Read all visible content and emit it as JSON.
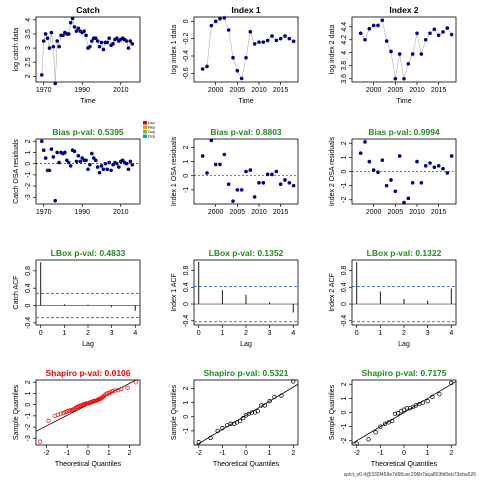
{
  "footer": "spict_v0.4@332f459e7d96cec206b7aca803fd0eb73eba526",
  "colors": {
    "pass": "#228B22",
    "fail": "#FF0000",
    "points": "#00008B",
    "ci_line": "#4169E1",
    "qq_line": "#000000"
  },
  "chart_data": [
    {
      "id": "catch",
      "type": "line",
      "title": "Catch",
      "title_color": "#000000",
      "xlabel": "Time",
      "ylabel": "log catch data",
      "xlim": [
        1966,
        2020
      ],
      "ylim": [
        1.8,
        4.1
      ],
      "xticks": [
        1970,
        1990,
        2010
      ],
      "yticks": [
        2.0,
        2.5,
        3.0,
        3.5,
        4.0
      ],
      "x": [
        1969,
        1970,
        1971,
        1972,
        1973,
        1974,
        1975,
        1976,
        1977,
        1978,
        1979,
        1980,
        1981,
        1982,
        1983,
        1984,
        1985,
        1986,
        1987,
        1988,
        1989,
        1990,
        1991,
        1992,
        1993,
        1994,
        1995,
        1996,
        1997,
        1998,
        1999,
        2000,
        2001,
        2002,
        2003,
        2004,
        2005,
        2006,
        2007,
        2008,
        2009,
        2010,
        2011,
        2012,
        2013,
        2014,
        2015,
        2016
      ],
      "y": [
        2.05,
        3.25,
        3.5,
        3.35,
        3.0,
        3.55,
        3.05,
        1.75,
        3.25,
        3.05,
        3.45,
        3.45,
        3.55,
        3.5,
        3.5,
        3.9,
        4.05,
        3.75,
        3.6,
        3.7,
        3.6,
        3.55,
        3.6,
        3.45,
        3.0,
        3.05,
        3.25,
        3.35,
        3.35,
        3.25,
        3.05,
        3.2,
        2.95,
        3.2,
        3.2,
        3.35,
        3.1,
        3.15,
        3.3,
        3.35,
        3.25,
        3.3,
        3.35,
        3.3,
        3.25,
        3.0,
        3.25,
        3.15
      ],
      "series_color": "#00008B",
      "connect": true
    },
    {
      "id": "index1",
      "type": "line",
      "title": "Index 1",
      "title_color": "#000000",
      "xlabel": "Time",
      "ylabel": "log index 1 data",
      "xlim": [
        1995,
        2019
      ],
      "ylim": [
        -0.7,
        0.05
      ],
      "xticks": [
        2000,
        2005,
        2010,
        2015
      ],
      "yticks": [
        -0.6,
        -0.4,
        -0.2,
        0.0
      ],
      "x": [
        1997,
        1998,
        1999,
        2000,
        2001,
        2002,
        2003,
        2004,
        2005,
        2006,
        2007,
        2008,
        2009,
        2010,
        2011,
        2012,
        2013,
        2014,
        2015,
        2016,
        2017,
        2018
      ],
      "y": [
        -0.55,
        -0.52,
        -0.05,
        0.0,
        0.03,
        0.04,
        -0.1,
        -0.42,
        -0.57,
        -0.66,
        -0.42,
        -0.12,
        -0.26,
        -0.24,
        -0.24,
        -0.22,
        -0.17,
        -0.22,
        -0.2,
        -0.17,
        -0.2,
        -0.23
      ],
      "series_color": "#00008B",
      "connect": true
    },
    {
      "id": "index2",
      "type": "line",
      "title": "Index 2",
      "title_color": "#000000",
      "xlabel": "Time",
      "ylabel": "log index 2 data",
      "xlim": [
        1995,
        2019
      ],
      "ylim": [
        3.55,
        4.55
      ],
      "xticks": [
        2000,
        2005,
        2010,
        2015
      ],
      "yticks": [
        3.6,
        3.8,
        4.0,
        4.2,
        4.4
      ],
      "x": [
        1997,
        1998,
        1999,
        2000,
        2001,
        2002,
        2003,
        2004,
        2005,
        2006,
        2007,
        2008,
        2009,
        2010,
        2011,
        2012,
        2013,
        2014,
        2015,
        2016,
        2017,
        2018
      ],
      "y": [
        4.3,
        4.2,
        4.37,
        4.42,
        4.42,
        4.5,
        4.18,
        4.02,
        3.6,
        3.98,
        3.6,
        3.83,
        3.98,
        4.3,
        3.98,
        4.2,
        4.3,
        4.36,
        4.27,
        4.32,
        4.38,
        4.28
      ],
      "series_color": "#00008B",
      "connect": true
    },
    {
      "id": "catch_osa",
      "type": "scatter",
      "title": "Bias p-val: 0.5395",
      "title_color": "#228B22",
      "xlabel": "",
      "ylabel": "Catch OSA residuals",
      "xlim": [
        1966,
        2020
      ],
      "ylim": [
        -3.6,
        2.2
      ],
      "xticks": [
        1970,
        1990,
        2010
      ],
      "yticks": [
        -3,
        -2,
        -1,
        0,
        1,
        2
      ],
      "x": [
        1969,
        1970,
        1971,
        1972,
        1973,
        1974,
        1975,
        1976,
        1977,
        1978,
        1979,
        1980,
        1981,
        1982,
        1983,
        1984,
        1985,
        1986,
        1987,
        1988,
        1989,
        1990,
        1991,
        1992,
        1993,
        1994,
        1995,
        1996,
        1997,
        1998,
        1999,
        2000,
        2001,
        2002,
        2003,
        2004,
        2005,
        2006,
        2007,
        2008,
        2009,
        2010,
        2011,
        2012,
        2013,
        2014,
        2015,
        2016
      ],
      "y": [
        2.0,
        1.2,
        0.5,
        -0.6,
        -0.6,
        1.3,
        0.6,
        -3.3,
        1.0,
        0.1,
        1.0,
        0.9,
        1.0,
        0.3,
        0.1,
        -0.2,
        1.2,
        1.1,
        0.2,
        0.7,
        0.2,
        0.5,
        0.3,
        0.3,
        -0.5,
        -0.1,
        0.9,
        0.5,
        0.3,
        -0.3,
        -0.8,
        -0.2,
        -0.5,
        0.0,
        -0.5,
        0.1,
        -0.6,
        -0.1,
        0.1,
        0.0,
        -0.3,
        0.2,
        0.3,
        0.1,
        0.0,
        -0.5,
        0.2,
        -0.1
      ],
      "series_color": "#00008B",
      "connect": false,
      "zero_line": true,
      "legend": [
        "Lep",
        "Nep",
        "Ocp",
        "Dcp"
      ],
      "legend_colors": [
        "#E60000",
        "#E6A000",
        "#80C000",
        "#00A0E6"
      ]
    },
    {
      "id": "index1_osa",
      "type": "scatter",
      "title": "Bias p-val: 0.8803",
      "title_color": "#228B22",
      "xlabel": "",
      "ylabel": "Index 1 OSA residuals",
      "xlim": [
        1995,
        2019
      ],
      "ylim": [
        -2.0,
        2.6
      ],
      "xticks": [
        2000,
        2005,
        2010,
        2015
      ],
      "yticks": [
        -1,
        0,
        1,
        2
      ],
      "x": [
        1997,
        1998,
        1999,
        2000,
        2001,
        2002,
        2003,
        2004,
        2005,
        2006,
        2007,
        2008,
        2009,
        2010,
        2011,
        2012,
        2013,
        2014,
        2015,
        2016,
        2017,
        2018
      ],
      "y": [
        1.4,
        0.2,
        2.5,
        0.8,
        0.8,
        1.5,
        -0.6,
        -1.8,
        -1.0,
        -1.0,
        0.3,
        0.4,
        -1.5,
        -0.5,
        -0.5,
        0.1,
        0.1,
        0.3,
        -0.6,
        -0.3,
        -0.5,
        -0.7
      ],
      "series_color": "#00008B",
      "connect": false,
      "zero_line": true
    },
    {
      "id": "index2_osa",
      "type": "scatter",
      "title": "Bias p-val: 0.9994",
      "title_color": "#228B22",
      "xlabel": "",
      "ylabel": "Index 2 OSA residuals",
      "xlim": [
        1995,
        2019
      ],
      "ylim": [
        -2.3,
        2.3
      ],
      "xticks": [
        2000,
        2005,
        2010,
        2015
      ],
      "yticks": [
        -2,
        -1,
        0,
        1,
        2
      ],
      "x": [
        1997,
        1998,
        1999,
        2000,
        2001,
        2002,
        2003,
        2004,
        2005,
        2006,
        2007,
        2008,
        2009,
        2010,
        2011,
        2012,
        2013,
        2014,
        2015,
        2016,
        2017,
        2018
      ],
      "y": [
        1.3,
        2.1,
        0.7,
        0.1,
        -0.05,
        0.8,
        -1.0,
        -0.6,
        -1.4,
        1.1,
        -2.2,
        -1.9,
        -0.8,
        0.7,
        -0.8,
        0.4,
        0.6,
        0.3,
        0.4,
        0.2,
        -0.1,
        1.1
      ],
      "series_color": "#00008B",
      "connect": false,
      "zero_line": true
    },
    {
      "id": "catch_acf",
      "type": "acf",
      "title": "LBox p-val: 0.4833",
      "title_color": "#228B22",
      "xlabel": "Lag",
      "ylabel": "Catch ACF",
      "xlim": [
        -0.2,
        4.2
      ],
      "ylim": [
        -0.45,
        1.05
      ],
      "xticks": [
        0,
        1,
        2,
        3,
        4
      ],
      "yticks": [
        -0.4,
        0.0,
        0.4,
        0.8
      ],
      "lags": [
        0,
        1,
        2,
        3,
        4
      ],
      "values": [
        1.0,
        0.03,
        0.02,
        -0.04,
        -0.12
      ],
      "ci": 0.28
    },
    {
      "id": "index1_acf",
      "type": "acf",
      "title": "LBox p-val: 0.1352",
      "title_color": "#228B22",
      "xlabel": "Lag",
      "ylabel": "Index 1 ACF",
      "xlim": [
        -0.2,
        4.2
      ],
      "ylim": [
        -0.5,
        1.05
      ],
      "xticks": [
        0,
        1,
        2,
        3,
        4
      ],
      "yticks": [
        -0.4,
        0.0,
        0.4,
        0.8
      ],
      "lags": [
        0,
        1,
        2,
        3,
        4
      ],
      "values": [
        1.0,
        0.33,
        0.22,
        0.04,
        -0.2
      ],
      "ci": 0.42
    },
    {
      "id": "index2_acf",
      "type": "acf",
      "title": "LBox p-val: 0.1322",
      "title_color": "#228B22",
      "xlabel": "Lag",
      "ylabel": "Index 2 ACF",
      "xlim": [
        -0.2,
        4.2
      ],
      "ylim": [
        -0.5,
        1.05
      ],
      "xticks": [
        0,
        1,
        2,
        3,
        4
      ],
      "yticks": [
        -0.4,
        0.0,
        0.4,
        0.8
      ],
      "lags": [
        0,
        1,
        2,
        3,
        4
      ],
      "values": [
        1.0,
        0.3,
        0.12,
        0.08,
        0.37
      ],
      "ci": 0.42
    },
    {
      "id": "catch_qq",
      "type": "qq",
      "title": "Shapiro p-val: 0.0106",
      "title_color": "#FF0000",
      "xlabel": "Theoretical Quantiles",
      "ylabel": "Sample Quantiles",
      "xlim": [
        -2.5,
        2.5
      ],
      "ylim": [
        -3.6,
        2.2
      ],
      "xticks": [
        -2,
        -1,
        0,
        1,
        2
      ],
      "yticks": [
        -3,
        -2,
        -1,
        0,
        1,
        2
      ],
      "x": [
        -2.3,
        -1.9,
        -1.6,
        -1.45,
        -1.3,
        -1.18,
        -1.08,
        -1.0,
        -0.92,
        -0.85,
        -0.78,
        -0.72,
        -0.66,
        -0.6,
        -0.55,
        -0.49,
        -0.44,
        -0.39,
        -0.34,
        -0.29,
        -0.24,
        -0.19,
        -0.15,
        -0.1,
        -0.05,
        0.0,
        0.05,
        0.1,
        0.15,
        0.19,
        0.24,
        0.29,
        0.34,
        0.39,
        0.44,
        0.49,
        0.55,
        0.6,
        0.66,
        0.72,
        0.78,
        0.85,
        0.92,
        1.0,
        1.08,
        1.18,
        1.3,
        1.45,
        1.6,
        1.9,
        2.3
      ],
      "y": [
        -3.3,
        -1.45,
        -1.0,
        -0.9,
        -0.8,
        -0.75,
        -0.65,
        -0.6,
        -0.55,
        -0.5,
        -0.5,
        -0.45,
        -0.4,
        -0.3,
        -0.25,
        -0.2,
        -0.15,
        -0.1,
        -0.1,
        -0.05,
        0.0,
        0.05,
        0.05,
        0.1,
        0.1,
        0.1,
        0.15,
        0.2,
        0.2,
        0.25,
        0.3,
        0.3,
        0.35,
        0.35,
        0.4,
        0.45,
        0.5,
        0.55,
        0.6,
        0.7,
        0.8,
        0.9,
        1.0,
        1.0,
        1.1,
        1.2,
        1.25,
        1.3,
        1.4,
        1.5,
        2.0
      ],
      "line": {
        "intercept": 0.0,
        "slope": 0.95
      },
      "marker_color": "#FF0000"
    },
    {
      "id": "index1_qq",
      "type": "qq",
      "title": "Shapiro p-val: 0.5321",
      "title_color": "#228B22",
      "xlabel": "Theoretical Quantiles",
      "ylabel": "Sample Quantiles",
      "xlim": [
        -2.2,
        2.2
      ],
      "ylim": [
        -2.0,
        2.6
      ],
      "xticks": [
        -2,
        -1,
        0,
        1,
        2
      ],
      "yticks": [
        -1,
        0,
        1,
        2
      ],
      "x": [
        -2.0,
        -1.5,
        -1.2,
        -1.0,
        -0.8,
        -0.65,
        -0.5,
        -0.38,
        -0.25,
        -0.12,
        0.0,
        0.12,
        0.25,
        0.38,
        0.5,
        0.65,
        0.8,
        1.0,
        1.2,
        1.5,
        2.0
      ],
      "y": [
        -1.8,
        -1.5,
        -1.0,
        -0.8,
        -0.6,
        -0.5,
        -0.5,
        -0.4,
        -0.3,
        -0.1,
        0.1,
        0.2,
        0.3,
        0.3,
        0.4,
        0.8,
        0.8,
        1.1,
        1.4,
        1.5,
        2.5
      ],
      "line": {
        "intercept": 0.1,
        "slope": 1.0
      },
      "marker_color": "#000000"
    },
    {
      "id": "index2_qq",
      "type": "qq",
      "title": "Shapiro p-val: 0.7175",
      "title_color": "#228B22",
      "xlabel": "Theoretical Quantiles",
      "ylabel": "Sample Quantiles",
      "xlim": [
        -2.2,
        2.2
      ],
      "ylim": [
        -2.3,
        2.3
      ],
      "xticks": [
        -2,
        -1,
        0,
        1,
        2
      ],
      "yticks": [
        -2,
        -1,
        0,
        1,
        2
      ],
      "x": [
        -2.0,
        -1.5,
        -1.2,
        -1.0,
        -0.8,
        -0.65,
        -0.5,
        -0.38,
        -0.25,
        -0.12,
        0.0,
        0.12,
        0.25,
        0.38,
        0.5,
        0.65,
        0.8,
        1.0,
        1.2,
        1.5,
        2.0
      ],
      "y": [
        -2.2,
        -1.9,
        -1.4,
        -1.0,
        -0.8,
        -0.7,
        -0.6,
        -0.1,
        -0.05,
        0.1,
        0.2,
        0.3,
        0.3,
        0.4,
        0.5,
        0.6,
        0.7,
        0.8,
        1.1,
        1.3,
        2.1
      ],
      "line": {
        "intercept": 0.0,
        "slope": 1.0
      },
      "marker_color": "#000000"
    }
  ]
}
